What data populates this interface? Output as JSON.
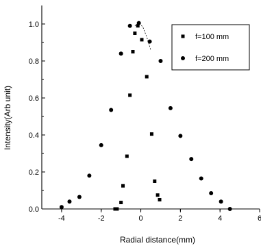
{
  "chart_data": {
    "type": "scatter",
    "title": "",
    "xlabel": "Radial distance(mm)",
    "ylabel": "Intensity(Arb unit)",
    "xlim": [
      -5,
      6
    ],
    "ylim": [
      0.0,
      1.1
    ],
    "xticks": [
      -4,
      -2,
      0,
      2,
      4,
      6
    ],
    "xtick_labels": [
      "-4",
      "-2",
      "0",
      "2",
      "4",
      "6"
    ],
    "yticks": [
      0.0,
      0.2,
      0.4,
      0.6,
      0.8,
      1.0
    ],
    "ytick_labels": [
      "0.0",
      "0.2",
      "0.4",
      "0.6",
      "0.8",
      "1.0"
    ],
    "grid": false,
    "legend_position": "top-right",
    "series": [
      {
        "name": "f=100 mm",
        "marker": "square",
        "color": "#000000",
        "x": [
          -1.3,
          -1.2,
          -1.0,
          -0.9,
          -0.7,
          -0.55,
          -0.4,
          -0.3,
          -0.15,
          0.05,
          0.3,
          0.55,
          0.7,
          0.85,
          0.95
        ],
        "y": [
          0.0,
          0.0,
          0.035,
          0.125,
          0.285,
          0.615,
          0.85,
          0.95,
          0.99,
          0.915,
          0.715,
          0.405,
          0.15,
          0.075,
          0.05
        ]
      },
      {
        "name": "f=200 mm",
        "marker": "circle",
        "color": "#000000",
        "x": [
          -4.0,
          -3.6,
          -3.1,
          -2.6,
          -2.0,
          -1.5,
          -1.0,
          -0.55,
          -0.1,
          0.45,
          1.0,
          1.5,
          2.0,
          2.55,
          3.05,
          3.55,
          4.05,
          4.5
        ],
        "y": [
          0.01,
          0.04,
          0.065,
          0.18,
          0.345,
          0.535,
          0.84,
          0.99,
          1.005,
          0.905,
          0.8,
          0.545,
          0.395,
          0.27,
          0.165,
          0.085,
          0.04,
          0.0
        ]
      }
    ],
    "fit_curve": {
      "x": [
        -0.3,
        -0.1,
        0.1,
        0.3,
        0.5
      ],
      "y": [
        0.99,
        1.005,
        0.985,
        0.93,
        0.86
      ]
    }
  }
}
